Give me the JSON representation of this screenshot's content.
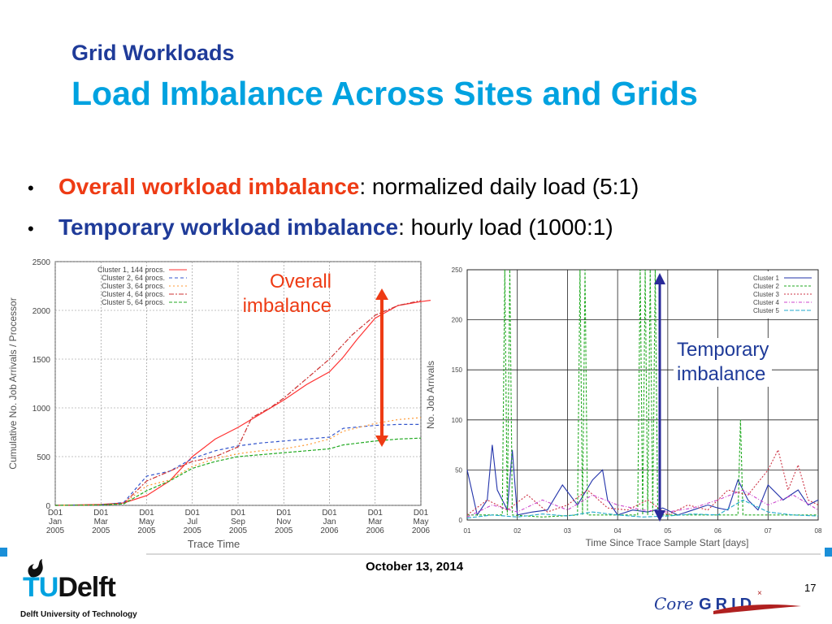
{
  "slide": {
    "title_small": "Grid Workloads",
    "title_main": "Load Imbalance Across Sites and Grids",
    "bullets": [
      {
        "bold": "Overall workload imbalance",
        "rest": ": normalized daily load (5:1)",
        "color": "#ee3b14"
      },
      {
        "bold": "Temporary workload imbalance",
        "rest": ": hourly load (1000:1)",
        "color": "#1f3b99"
      }
    ],
    "bullet_symbol": "•",
    "annotation_left": [
      "Overall",
      "imbalance"
    ],
    "annotation_right": [
      "Temporary",
      "imbalance"
    ],
    "date": "October 13, 2014",
    "page_number": "17",
    "logo_left": {
      "word_tu": "TU",
      "word_delft": "Delft",
      "subtitle": "Delft University of Technology"
    },
    "logo_right": {
      "word_core": "Core",
      "word_grid": "GRID"
    }
  },
  "chart_data": [
    {
      "type": "line",
      "ylabel": "Cumulative No. Job Arrivals / Processor",
      "xlabel": "Trace Time",
      "ylim": [
        0,
        2500
      ],
      "yticks": [
        0,
        500,
        1000,
        1500,
        2000,
        2500
      ],
      "xticks": [
        "D01 Jan 2005",
        "D01 Mar 2005",
        "D01 May 2005",
        "D01 Jul 2005",
        "D01 Sep 2005",
        "D01 Nov 2005",
        "D01 Jan 2006",
        "D01 Mar 2006",
        "D01 May 2006"
      ],
      "grid": true,
      "legend_position": "top-left",
      "series": [
        {
          "name": "Cluster 1, 144 procs.",
          "color": "#ff3333",
          "dash": "",
          "x": [
            0,
            1,
            1.5,
            2,
            2.5,
            3,
            3.5,
            4,
            4.5,
            5,
            5.5,
            6,
            6.3,
            6.6,
            7,
            7.5,
            8,
            8.5
          ],
          "y": [
            0,
            10,
            25,
            100,
            250,
            500,
            680,
            800,
            940,
            1080,
            1240,
            1370,
            1520,
            1700,
            1920,
            2050,
            2090,
            2120
          ]
        },
        {
          "name": "Cluster 2, 64 procs.",
          "color": "#3355cc",
          "dash": "4,3",
          "x": [
            0,
            1,
            1.5,
            2,
            2.5,
            3,
            3.5,
            4,
            4.5,
            5,
            5.5,
            6,
            6.3,
            7,
            7.5,
            8
          ],
          "y": [
            0,
            5,
            30,
            300,
            350,
            480,
            560,
            610,
            640,
            660,
            680,
            700,
            790,
            820,
            830,
            830
          ]
        },
        {
          "name": "Cluster 3, 64 procs.",
          "color": "#ff9933",
          "dash": "2,3",
          "x": [
            0,
            1,
            1.5,
            2,
            2.5,
            3,
            3.5,
            4,
            4.5,
            5,
            5.5,
            6,
            6.3,
            7,
            7.5,
            8
          ],
          "y": [
            0,
            5,
            20,
            200,
            260,
            400,
            480,
            530,
            560,
            580,
            620,
            680,
            760,
            840,
            880,
            900
          ]
        },
        {
          "name": "Cluster 4, 64 procs.",
          "color": "#cc3333",
          "dash": "6,2,2,2",
          "x": [
            0,
            1,
            1.5,
            2,
            2.5,
            3,
            3.5,
            4,
            4.3,
            4.7,
            5,
            5.5,
            6,
            6.5,
            7,
            7.5,
            8
          ],
          "y": [
            0,
            5,
            20,
            250,
            350,
            450,
            500,
            600,
            900,
            1000,
            1100,
            1300,
            1500,
            1750,
            1950,
            2050,
            2100
          ]
        },
        {
          "name": "Cluster 5, 64 procs.",
          "color": "#22aa22",
          "dash": "4,2",
          "x": [
            0,
            1,
            1.5,
            2,
            2.5,
            3,
            3.5,
            4,
            4.5,
            5,
            5.5,
            6,
            6.3,
            7,
            7.5,
            8
          ],
          "y": [
            0,
            5,
            15,
            150,
            250,
            380,
            450,
            500,
            520,
            540,
            560,
            580,
            620,
            660,
            680,
            690
          ]
        }
      ]
    },
    {
      "type": "line",
      "ylabel": "No. Job Arrivals",
      "xlabel": "Time Since Trace Sample Start [days]",
      "ylim": [
        0,
        250
      ],
      "yticks": [
        0,
        50,
        100,
        150,
        200,
        250
      ],
      "xticks": [
        "01",
        "02",
        "03",
        "04",
        "05",
        "06",
        "07",
        "08"
      ],
      "xlim": [
        1,
        8
      ],
      "grid": true,
      "legend_position": "top-right",
      "series": [
        {
          "name": "Cluster 1",
          "color": "#2233aa",
          "dash": "",
          "x": [
            1.0,
            1.2,
            1.4,
            1.5,
            1.6,
            1.8,
            1.9,
            2.0,
            2.3,
            2.6,
            2.9,
            3.2,
            3.5,
            3.7,
            3.8,
            4.0,
            4.3,
            4.6,
            4.9,
            5.2,
            5.5,
            5.8,
            6.0,
            6.2,
            6.4,
            6.6,
            6.8,
            7.0,
            7.3,
            7.6,
            7.8,
            8.0
          ],
          "y": [
            50,
            5,
            20,
            75,
            30,
            10,
            70,
            5,
            8,
            10,
            35,
            15,
            40,
            50,
            20,
            5,
            10,
            8,
            12,
            5,
            10,
            15,
            12,
            10,
            40,
            20,
            10,
            35,
            20,
            30,
            15,
            20
          ]
        },
        {
          "name": "Cluster 2",
          "color": "#22aa22",
          "dash": "3,2",
          "x": [
            1.0,
            1.7,
            1.75,
            1.8,
            1.85,
            1.9,
            2.5,
            3.2,
            3.25,
            3.3,
            3.35,
            3.4,
            4.4,
            4.45,
            4.5,
            4.55,
            4.6,
            4.65,
            4.7,
            4.75,
            4.8,
            5.5,
            6.4,
            6.45,
            6.5,
            7.0,
            8.0
          ],
          "y": [
            5,
            5,
            250,
            5,
            250,
            5,
            3,
            5,
            250,
            5,
            250,
            5,
            5,
            250,
            5,
            250,
            5,
            250,
            5,
            250,
            5,
            5,
            5,
            100,
            5,
            5,
            5
          ]
        },
        {
          "name": "Cluster 3",
          "color": "#cc3344",
          "dash": "2,2",
          "x": [
            1.0,
            1.4,
            1.8,
            2.2,
            2.6,
            3.0,
            3.4,
            3.8,
            4.2,
            4.6,
            5.0,
            5.4,
            5.8,
            6.2,
            6.6,
            7.0,
            7.2,
            7.4,
            7.6,
            7.8,
            8.0
          ],
          "y": [
            5,
            20,
            10,
            25,
            8,
            15,
            30,
            12,
            10,
            20,
            5,
            15,
            10,
            30,
            25,
            50,
            70,
            30,
            55,
            20,
            15
          ]
        },
        {
          "name": "Cluster 4",
          "color": "#cc44cc",
          "dash": "4,2,1,2",
          "x": [
            1.0,
            1.5,
            2.0,
            2.5,
            3.0,
            3.5,
            4.0,
            4.5,
            5.0,
            5.5,
            6.0,
            6.5,
            7.0,
            7.5,
            8.0
          ],
          "y": [
            3,
            15,
            8,
            20,
            10,
            25,
            15,
            10,
            8,
            12,
            20,
            30,
            15,
            25,
            10
          ]
        },
        {
          "name": "Cluster 5",
          "color": "#22aacc",
          "dash": "5,2",
          "x": [
            1.0,
            1.5,
            2.0,
            2.5,
            3.0,
            3.5,
            4.0,
            4.5,
            5.0,
            5.5,
            6.0,
            6.5,
            7.0,
            7.5,
            8.0
          ],
          "y": [
            2,
            5,
            3,
            6,
            4,
            8,
            5,
            3,
            4,
            6,
            5,
            20,
            8,
            5,
            4
          ]
        }
      ]
    }
  ]
}
